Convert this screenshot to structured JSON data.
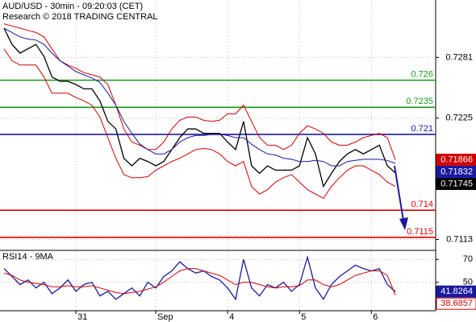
{
  "chart_data": [
    {
      "type": "line",
      "title": "AUD/USD - 30min - 09:20:03 (CET)",
      "subtitle": "Research © 2018 TRADING CENTRAL",
      "ylim": [
        0.7103,
        0.7334
      ],
      "yticks": [
        0.7281,
        0.7225,
        0.7113
      ],
      "grid": true,
      "series": [
        {
          "color": "#000000",
          "values": [
            0.7308,
            0.7293,
            0.7285,
            0.7289,
            0.7293,
            0.7282,
            0.7263,
            0.7259,
            0.7259,
            0.7256,
            0.7252,
            0.7252,
            0.7241,
            0.7222,
            0.7215,
            0.7188,
            0.7181,
            0.7188,
            0.7185,
            0.7181,
            0.7185,
            0.7196,
            0.7207,
            0.7215,
            0.7215,
            0.7211,
            0.7211,
            0.7211,
            0.7203,
            0.7196,
            0.7222,
            0.7181,
            0.7174,
            0.7181,
            0.7177,
            0.7177,
            0.7177,
            0.7181,
            0.7207,
            0.7192,
            0.7162,
            0.7174,
            0.7185,
            0.7192,
            0.7196,
            0.7192,
            0.7196,
            0.72,
            0.7181,
            0.71745
          ]
        },
        {
          "color": "#d00000",
          "values": [
            0.7312,
            0.731,
            0.7308,
            0.7306,
            0.7304,
            0.73,
            0.7289,
            0.7278,
            0.7274,
            0.7271,
            0.7267,
            0.7265,
            0.7263,
            0.7256,
            0.7237,
            0.7215,
            0.7203,
            0.72,
            0.7196,
            0.7196,
            0.7203,
            0.7215,
            0.7223,
            0.7226,
            0.7226,
            0.7223,
            0.7222,
            0.7223,
            0.7229,
            0.7229,
            0.7237,
            0.7222,
            0.7207,
            0.72,
            0.72,
            0.7196,
            0.72,
            0.7211,
            0.7218,
            0.7215,
            0.7211,
            0.7203,
            0.72,
            0.72,
            0.7203,
            0.7207,
            0.7209,
            0.7211,
            0.7207,
            0.71866
          ]
        },
        {
          "color": "#d00000",
          "values": [
            0.7289,
            0.7278,
            0.7274,
            0.7274,
            0.7274,
            0.7263,
            0.7248,
            0.7248,
            0.7248,
            0.7244,
            0.7241,
            0.7237,
            0.7226,
            0.7207,
            0.7188,
            0.7173,
            0.717,
            0.717,
            0.7171,
            0.7177,
            0.7181,
            0.7185,
            0.7188,
            0.7192,
            0.7196,
            0.7197,
            0.7196,
            0.7192,
            0.7185,
            0.7181,
            0.7185,
            0.7162,
            0.7155,
            0.7159,
            0.7166,
            0.717,
            0.7173,
            0.7166,
            0.7159,
            0.7155,
            0.7151,
            0.7162,
            0.717,
            0.7177,
            0.7181,
            0.7181,
            0.7177,
            0.7173,
            0.7166,
            0.7162
          ]
        },
        {
          "color": "#1a1aa0",
          "values": [
            0.7308,
            0.7304,
            0.73,
            0.7298,
            0.7297,
            0.7293,
            0.7285,
            0.7278,
            0.7273,
            0.7268,
            0.7265,
            0.7262,
            0.7258,
            0.7248,
            0.7237,
            0.7222,
            0.7211,
            0.7201,
            0.7196,
            0.7192,
            0.7192,
            0.7196,
            0.7203,
            0.7207,
            0.7209,
            0.7209,
            0.721,
            0.721,
            0.7209,
            0.7207,
            0.7207,
            0.7201,
            0.7196,
            0.7192,
            0.7191,
            0.7188,
            0.7187,
            0.7185,
            0.7185,
            0.7186,
            0.7185,
            0.7181,
            0.7181,
            0.7185,
            0.7186,
            0.7187,
            0.7187,
            0.7187,
            0.7186,
            0.71832
          ]
        }
      ],
      "levels": [
        {
          "value": 0.726,
          "color": "#1a9a1a"
        },
        {
          "value": 0.7235,
          "color": "#1a9a1a"
        },
        {
          "value": 0.721,
          "color": "#1a1aa0"
        },
        {
          "value": 0.714,
          "color": "#e00000"
        },
        {
          "value": 0.7115,
          "color": "#e00000"
        }
      ]
    },
    {
      "type": "line",
      "title": "RSI14 - 9MA",
      "categories": [
        null,
        null,
        null,
        null,
        null,
        null,
        null,
        null,
        null,
        "31",
        null,
        null,
        null,
        null,
        null,
        null,
        null,
        null,
        null,
        "Sep",
        null,
        null,
        null,
        null,
        null,
        null,
        null,
        null,
        "4",
        null,
        null,
        null,
        null,
        null,
        null,
        null,
        null,
        "5",
        null,
        null,
        null,
        null,
        null,
        null,
        null,
        null,
        "6",
        null,
        null,
        null
      ],
      "ylim": [
        25,
        78
      ],
      "yticks": [
        70,
        50
      ],
      "grid": true,
      "series": [
        {
          "color": "#1a1aa0",
          "values": [
            62,
            55,
            48,
            52,
            45,
            50,
            40,
            45,
            52,
            42,
            48,
            50,
            38,
            42,
            35,
            40,
            45,
            38,
            50,
            45,
            55,
            60,
            68,
            62,
            58,
            60,
            55,
            52,
            45,
            35,
            70,
            45,
            38,
            48,
            45,
            50,
            42,
            48,
            72,
            45,
            35,
            48,
            55,
            60,
            65,
            62,
            60,
            62,
            48,
            41.8264
          ]
        },
        {
          "color": "#d00000",
          "values": [
            58,
            56,
            52,
            50,
            49,
            48,
            46,
            46,
            47,
            46,
            46,
            47,
            45,
            43,
            41,
            40,
            41,
            42,
            44,
            46,
            50,
            55,
            60,
            62,
            62,
            60,
            58,
            56,
            52,
            48,
            50,
            50,
            48,
            46,
            45,
            46,
            46,
            47,
            52,
            52,
            48,
            46,
            48,
            52,
            56,
            58,
            60,
            60,
            56,
            38.6857
          ]
        }
      ]
    }
  ]
}
